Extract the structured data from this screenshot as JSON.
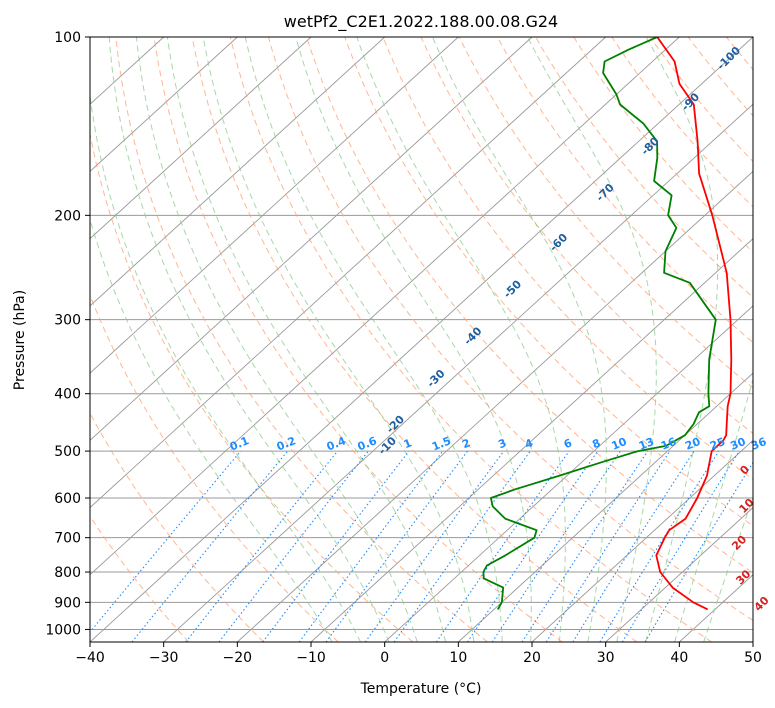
{
  "chart_data": {
    "type": "line",
    "title": "wetPf2_C2E1.2022.188.00.08.G24",
    "xlabel": "Temperature (°C)",
    "ylabel": "Pressure (hPa)",
    "xlim": [
      -40,
      50
    ],
    "ylim": [
      1050,
      100
    ],
    "y_scale": "log",
    "skew": true,
    "grid": true,
    "x_ticks": [
      -40,
      -30,
      -20,
      -10,
      0,
      10,
      20,
      30,
      40,
      50
    ],
    "x_tick_labels": [
      "−40",
      "−30",
      "−20",
      "−10",
      "0",
      "10",
      "20",
      "30",
      "40",
      "50"
    ],
    "y_ticks": [
      100,
      200,
      300,
      400,
      500,
      600,
      700,
      800,
      900,
      1000
    ],
    "y_tick_labels": [
      "100",
      "200",
      "300",
      "400",
      "500",
      "600",
      "700",
      "800",
      "900",
      "1000"
    ],
    "series": [
      {
        "color": "#ff0000",
        "points": [
          [
            925,
            39
          ],
          [
            900,
            36
          ],
          [
            850,
            31
          ],
          [
            800,
            27
          ],
          [
            750,
            24
          ],
          [
            700,
            22.5
          ],
          [
            680,
            22
          ],
          [
            650,
            22.5
          ],
          [
            600,
            21
          ],
          [
            550,
            19
          ],
          [
            500,
            16
          ],
          [
            480,
            16
          ],
          [
            470,
            15.6
          ],
          [
            450,
            14
          ],
          [
            420,
            11.5
          ],
          [
            400,
            10
          ],
          [
            350,
            5
          ],
          [
            300,
            -1
          ],
          [
            250,
            -8.5
          ],
          [
            200,
            -19
          ],
          [
            170,
            -27
          ],
          [
            150,
            -32
          ],
          [
            130,
            -38
          ],
          [
            120,
            -43
          ],
          [
            110,
            -47
          ],
          [
            100,
            -53
          ]
        ]
      },
      {
        "color": "#008000",
        "points": [
          [
            925,
            10.5
          ],
          [
            900,
            10
          ],
          [
            850,
            8
          ],
          [
            820,
            4
          ],
          [
            800,
            3
          ],
          [
            780,
            2.5
          ],
          [
            750,
            3.5
          ],
          [
            700,
            4.8
          ],
          [
            680,
            4
          ],
          [
            660,
            0
          ],
          [
            650,
            -2
          ],
          [
            620,
            -5.5
          ],
          [
            600,
            -7
          ],
          [
            580,
            -5
          ],
          [
            550,
            -1
          ],
          [
            520,
            3
          ],
          [
            500,
            6
          ],
          [
            490,
            9
          ],
          [
            470,
            10
          ],
          [
            450,
            9.5
          ],
          [
            430,
            8.5
          ],
          [
            420,
            9
          ],
          [
            400,
            7
          ],
          [
            350,
            2
          ],
          [
            300,
            -3
          ],
          [
            260,
            -12
          ],
          [
            250,
            -17
          ],
          [
            230,
            -20
          ],
          [
            210,
            -22
          ],
          [
            200,
            -25
          ],
          [
            185,
            -27.5
          ],
          [
            175,
            -32
          ],
          [
            160,
            -35
          ],
          [
            150,
            -37.5
          ],
          [
            140,
            -42
          ],
          [
            130,
            -48
          ],
          [
            125,
            -50
          ],
          [
            115,
            -55
          ],
          [
            110,
            -56.5
          ],
          [
            105,
            -55
          ],
          [
            100,
            -53
          ]
        ]
      }
    ],
    "mixing_ratio_labels": [
      "0.1",
      "0.2",
      "0.4",
      "0.6",
      "1",
      "1.5",
      "2",
      "3",
      "4",
      "6",
      "8",
      "10",
      "13",
      "16",
      "20",
      "25",
      "30",
      "36"
    ],
    "mixing_ratio_values": [
      0.1,
      0.2,
      0.4,
      0.6,
      1,
      1.5,
      2,
      3,
      4,
      6,
      8,
      10,
      13,
      16,
      20,
      25,
      30,
      36
    ],
    "dry_adiabat_labels": [
      "-100",
      "-90",
      "-80",
      "-70",
      "-60",
      "-50",
      "-40",
      "-30",
      "-20",
      "-10"
    ],
    "dry_adiabat_positions": [
      [
        108,
        -40
      ],
      [
        128,
        -38.7
      ],
      [
        152,
        -37.6
      ],
      [
        182,
        -36.8
      ],
      [
        221,
        -35.7
      ],
      [
        265,
        -35
      ],
      [
        318,
        -33.4
      ],
      [
        375,
        -32.1
      ],
      [
        448,
        -30.8
      ],
      [
        487,
        -28.7
      ]
    ],
    "moist_adiabat_labels": [
      "0",
      "10",
      "20",
      "30",
      "40"
    ],
    "moist_adiabat_positions": [
      [
        535,
        23.4
      ],
      [
        615,
        29
      ],
      [
        710,
        33.5
      ],
      [
        812,
        39.2
      ],
      [
        900,
        45.6
      ]
    ],
    "colors": {
      "temperature": "#ff0000",
      "dewpoint": "#008000",
      "isotherm": "#999999",
      "dry_adiabat": "#ff9d6f",
      "moist_adiabat": "#8cc98c",
      "mixing_ratio": "#1f8cff",
      "dry_adiabat_label": "#1f5fa0",
      "moist_adiabat_label": "#d62020",
      "mixing_ratio_label": "#1f8cff",
      "lcl_curve": "#d2b48c"
    }
  }
}
